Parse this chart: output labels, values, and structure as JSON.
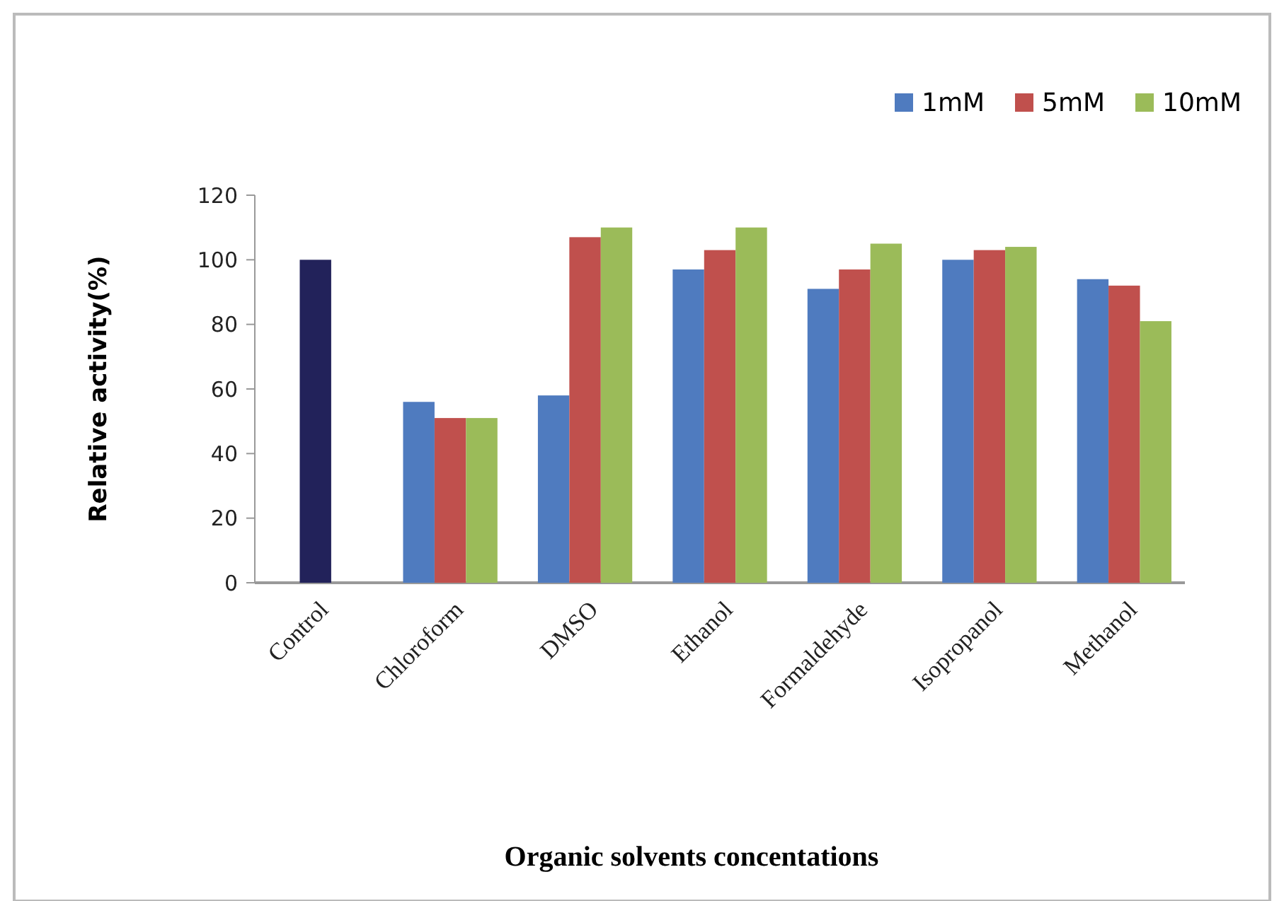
{
  "chart_data": {
    "type": "bar",
    "xlabel": "Organic solvents concentations",
    "ylabel": "Relative activity(%)",
    "categories": [
      "Control",
      "Chloroform",
      "DMSO",
      "Ethanol",
      "Formaldehyde",
      "Isopropanol",
      "Methanol"
    ],
    "series": [
      {
        "color": "#22225a",
        "values": [
          100,
          null,
          null,
          null,
          null,
          null,
          null
        ]
      },
      {
        "name": "1mM",
        "color": "#4f7bbf",
        "values": [
          null,
          56,
          58,
          97,
          91,
          100,
          94
        ]
      },
      {
        "name": "5mM",
        "color": "#c0504d",
        "values": [
          null,
          51,
          107,
          103,
          97,
          103,
          92
        ]
      },
      {
        "name": "10mM",
        "color": "#9bbb59",
        "values": [
          null,
          51,
          110,
          110,
          105,
          104,
          81
        ]
      }
    ],
    "ylim": [
      0,
      120
    ],
    "yticks": [
      0,
      20,
      40,
      60,
      80,
      100,
      120
    ],
    "legend": "top right"
  }
}
